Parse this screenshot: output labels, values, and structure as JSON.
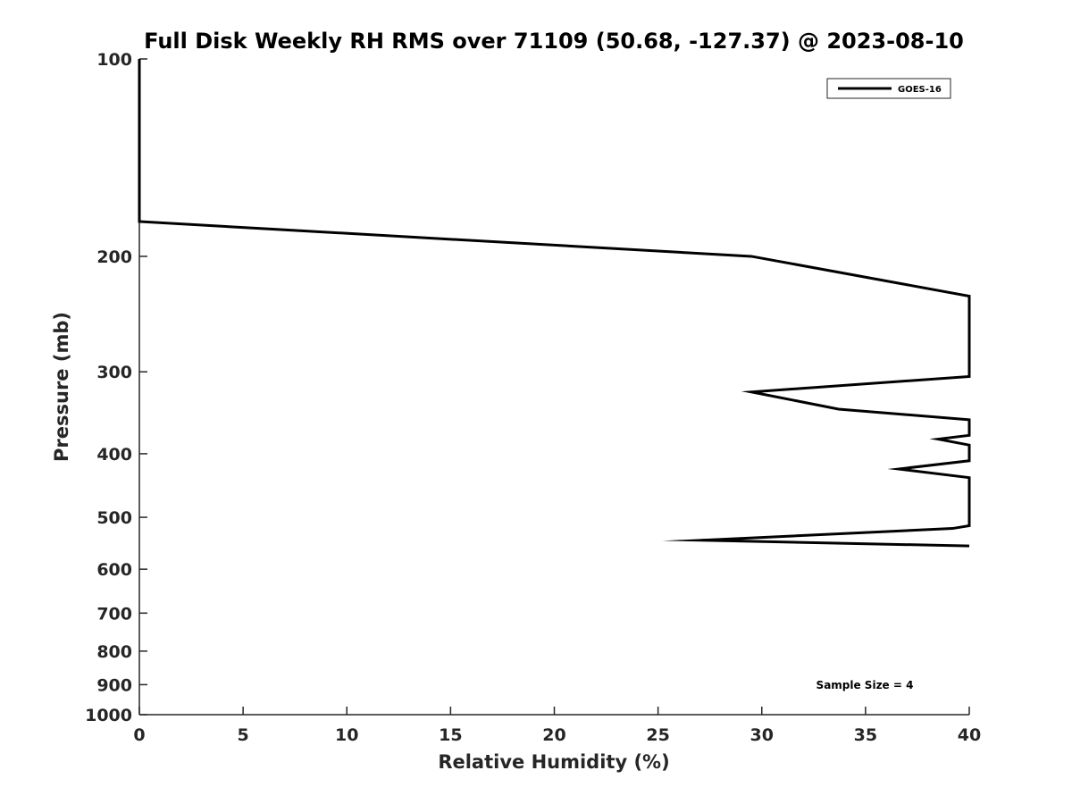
{
  "chart_data": {
    "type": "line",
    "title": "Full Disk Weekly RH RMS over 71109 (50.68, -127.37) @ 2023-08-10",
    "xlabel": "Relative Humidity (%)",
    "ylabel": "Pressure (mb)",
    "xlim": [
      0,
      40
    ],
    "ylim": [
      100,
      1000
    ],
    "y_scale": "log",
    "y_reversed": true,
    "x_ticks": [
      0,
      5,
      10,
      15,
      20,
      25,
      30,
      35,
      40
    ],
    "x_tick_labels": [
      "0",
      "5",
      "10",
      "15",
      "20",
      "25",
      "30",
      "35",
      "40"
    ],
    "y_ticks": [
      100,
      200,
      300,
      400,
      500,
      600,
      700,
      800,
      900,
      1000
    ],
    "y_tick_labels": [
      "100",
      "200",
      "300",
      "400",
      "500",
      "600",
      "700",
      "800",
      "900",
      "1000"
    ],
    "grid": false,
    "legend_position": "top-right",
    "series": [
      {
        "name": "GOES-16",
        "color": "#000000",
        "points": [
          [
            0,
            100
          ],
          [
            0,
            150
          ],
          [
            0,
            177
          ],
          [
            29.5,
            200
          ],
          [
            37,
            221
          ],
          [
            40,
            230
          ],
          [
            40,
            305
          ],
          [
            29.5,
            322
          ],
          [
            33.7,
            342
          ],
          [
            40,
            355
          ],
          [
            40,
            375
          ],
          [
            38.5,
            380
          ],
          [
            40,
            388
          ],
          [
            40,
            410
          ],
          [
            36.6,
            422
          ],
          [
            40,
            435
          ],
          [
            40,
            515
          ],
          [
            39.2,
            520
          ],
          [
            27.1,
            542
          ],
          [
            40,
            553
          ]
        ]
      }
    ],
    "annotations": [
      "Sample Size = 4"
    ]
  }
}
